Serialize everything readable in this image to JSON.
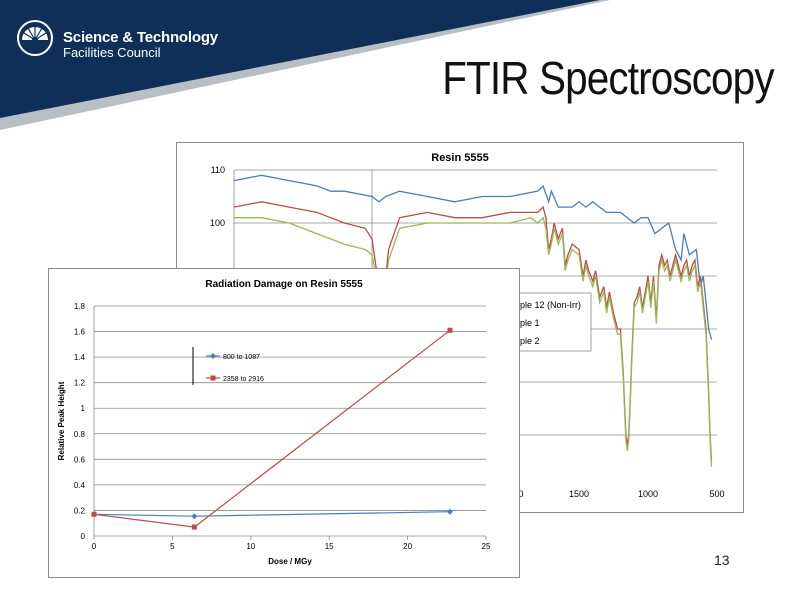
{
  "header": {
    "org_line1": "Science & Technology",
    "org_line2": "Facilities Council",
    "slide_title": "FTIR Spectroscopy",
    "page_number": "13",
    "navy": "#0f2f59",
    "gray": "#b9bec4"
  },
  "chart_data": [
    {
      "type": "line",
      "title": "Resin 5555",
      "xlim": [
        4000,
        500
      ],
      "ylim": [
        50,
        110
      ],
      "y_ticks_visible": [
        "110",
        "100"
      ],
      "x_ticks_visible": [
        "1500",
        "1000",
        "500"
      ],
      "x_tick_partial": "0",
      "legend_entries_partial": [
        "ple 12 (Non-Irr)",
        "ple 1",
        "ple 2"
      ],
      "series": [
        {
          "color": "#4a7ebb",
          "x": [
            4000,
            3800,
            3600,
            3400,
            3300,
            3200,
            3000,
            2950,
            2900,
            2800,
            2600,
            2400,
            2200,
            2000,
            1800,
            1760,
            1720,
            1700,
            1650,
            1600,
            1550,
            1500,
            1450,
            1400,
            1350,
            1300,
            1250,
            1200,
            1150,
            1100,
            1050,
            1000,
            950,
            900,
            850,
            830,
            820,
            810,
            800,
            780,
            760,
            740,
            720,
            700,
            650,
            620,
            600,
            580,
            560,
            540
          ],
          "y": [
            108,
            109,
            108,
            107,
            106,
            106,
            105,
            104,
            105,
            106,
            105,
            104,
            105,
            105,
            106,
            107,
            104,
            106,
            103,
            103,
            103,
            104,
            103,
            104,
            103,
            102,
            102,
            102,
            101,
            100,
            101,
            101,
            98,
            99,
            100,
            98,
            97,
            96,
            95,
            94,
            93,
            98,
            96,
            94,
            95,
            88,
            90,
            85,
            80,
            78
          ]
        },
        {
          "color": "#be4b48",
          "x": [
            4000,
            3800,
            3600,
            3400,
            3300,
            3200,
            3050,
            3000,
            2950,
            2920,
            2900,
            2880,
            2800,
            2600,
            2400,
            2200,
            2000,
            1850,
            1800,
            1760,
            1740,
            1720,
            1700,
            1680,
            1650,
            1620,
            1600,
            1580,
            1550,
            1500,
            1470,
            1450,
            1430,
            1400,
            1380,
            1350,
            1320,
            1300,
            1280,
            1250,
            1220,
            1200,
            1180,
            1170,
            1160,
            1150,
            1140,
            1130,
            1120,
            1100,
            1080,
            1060,
            1040,
            1000,
            980,
            960,
            940,
            920,
            900,
            880,
            860,
            840,
            820,
            800,
            780,
            760,
            740,
            720,
            700,
            680,
            660,
            640,
            620,
            600,
            580,
            560,
            550,
            540
          ],
          "y": [
            103,
            104,
            103,
            102,
            101,
            100,
            99,
            97,
            88,
            86,
            90,
            95,
            101,
            102,
            101,
            101,
            102,
            102,
            102,
            103,
            101,
            95,
            97,
            100,
            97,
            99,
            92,
            94,
            96,
            95,
            90,
            93,
            91,
            89,
            91,
            86,
            88,
            84,
            87,
            83,
            80,
            80,
            72,
            66,
            60,
            58,
            60,
            66,
            73,
            85,
            86,
            88,
            84,
            90,
            85,
            90,
            82,
            92,
            94,
            92,
            93,
            90,
            92,
            94,
            92,
            90,
            92,
            93,
            90,
            92,
            93,
            88,
            90,
            85,
            80,
            68,
            60,
            55
          ]
        },
        {
          "color": "#98b954",
          "x": [
            4000,
            3800,
            3600,
            3400,
            3300,
            3200,
            3050,
            3000,
            2950,
            2920,
            2900,
            2880,
            2800,
            2600,
            2400,
            2200,
            2000,
            1850,
            1800,
            1760,
            1740,
            1720,
            1700,
            1680,
            1650,
            1620,
            1600,
            1580,
            1550,
            1500,
            1470,
            1450,
            1430,
            1400,
            1380,
            1350,
            1320,
            1300,
            1280,
            1250,
            1220,
            1200,
            1180,
            1170,
            1160,
            1150,
            1140,
            1130,
            1120,
            1100,
            1080,
            1060,
            1040,
            1000,
            980,
            960,
            940,
            920,
            900,
            880,
            860,
            840,
            820,
            800,
            780,
            760,
            740,
            720,
            700,
            680,
            660,
            640,
            620,
            600,
            580,
            560,
            550,
            540
          ],
          "y": [
            101,
            101,
            100,
            98,
            97,
            96,
            95,
            94,
            87,
            85,
            89,
            93,
            99,
            100,
            100,
            100,
            100,
            101,
            100,
            101,
            99,
            94,
            96,
            99,
            96,
            98,
            91,
            93,
            95,
            94,
            89,
            92,
            90,
            88,
            90,
            85,
            87,
            83,
            86,
            82,
            79,
            79,
            71,
            65,
            59,
            57,
            59,
            65,
            72,
            84,
            85,
            87,
            83,
            89,
            84,
            89,
            81,
            91,
            93,
            91,
            92,
            89,
            91,
            93,
            91,
            89,
            91,
            92,
            89,
            91,
            92,
            87,
            89,
            84,
            79,
            67,
            59,
            54
          ]
        }
      ]
    },
    {
      "type": "line",
      "title": "Radiation Damage on Resin 5555",
      "xlabel": "Dose / MGy",
      "ylabel": "Relative Peak Height",
      "xlim": [
        0,
        25
      ],
      "ylim": [
        0,
        1.8
      ],
      "x_ticks": [
        "0",
        "5",
        "10",
        "15",
        "20",
        "25"
      ],
      "y_ticks": [
        "0",
        "0.2",
        "0.4",
        "0.6",
        "0.8",
        "1",
        "1.2",
        "1.4",
        "1.6",
        "1.8"
      ],
      "grid": "horizontal",
      "legend_position": "upper-left",
      "series": [
        {
          "name": "800 to 1087",
          "color": "#4a7ebb",
          "marker": "diamond",
          "x": [
            0,
            6.4,
            22.7
          ],
          "y": [
            0.17,
            0.155,
            0.19
          ]
        },
        {
          "name": "2358 to 2916",
          "color": "#be4b48",
          "marker": "square",
          "x": [
            0,
            6.4,
            22.7
          ],
          "y": [
            0.17,
            0.07,
            1.61
          ]
        }
      ]
    }
  ]
}
